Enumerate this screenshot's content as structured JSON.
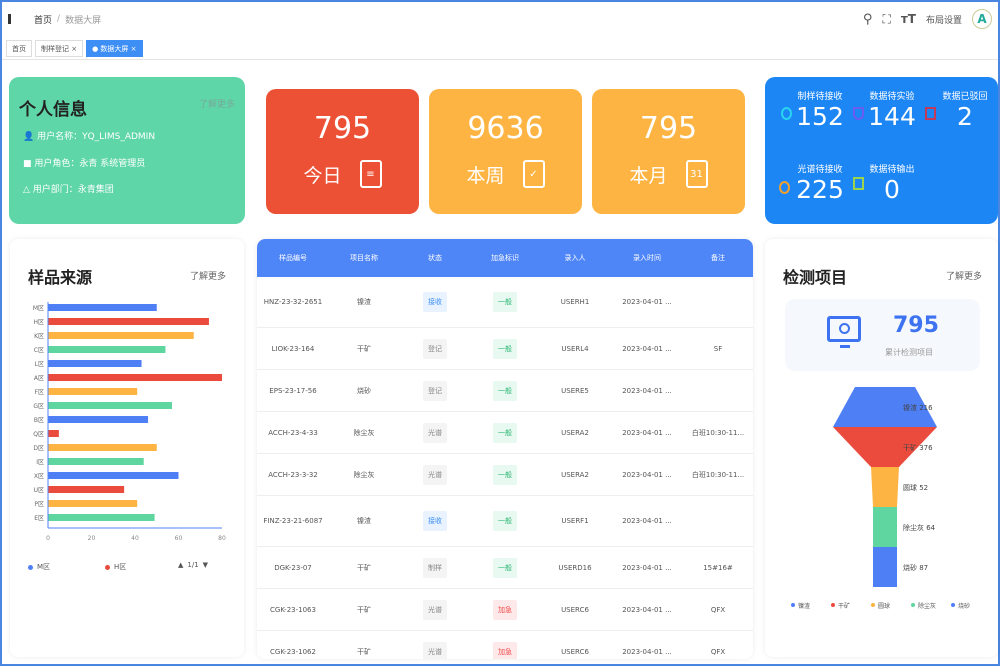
{
  "header": {
    "breadcrumb": [
      "首页",
      "/",
      "数据大屏"
    ],
    "right_text": "布局设置",
    "avatar": "A"
  },
  "tabs": [
    {
      "label": "首页"
    },
    {
      "label": "制样登记 ×"
    },
    {
      "label": "● 数据大屏 ×",
      "active": true
    }
  ],
  "profile": {
    "title": "个人信息",
    "more": "了解更多",
    "rows": [
      {
        "icon": "user-icon",
        "text": "用户名称：YQ_LIMS_ADMIN"
      },
      {
        "icon": "role-icon",
        "text": "用户角色：永青 系统管理员"
      },
      {
        "icon": "dept-icon",
        "text": "用户部门：永青集团"
      }
    ]
  },
  "stats": [
    {
      "value": "795",
      "label": "今日",
      "icon": "note-edit-icon",
      "color": "#ec5136"
    },
    {
      "value": "9636",
      "label": "本周",
      "icon": "calendar-check-icon",
      "color": "#fdb443"
    },
    {
      "value": "795",
      "label": "本月",
      "icon": "calendar-31-icon",
      "color": "#fdb443"
    }
  ],
  "pending": [
    {
      "label": "制样待接收",
      "value": "152",
      "icon": "download-icon",
      "color": "#29d3f0"
    },
    {
      "label": "数据待实验",
      "value": "144",
      "icon": "shield-icon",
      "color": "#6b5cf0"
    },
    {
      "label": "数据已驳回",
      "value": "2",
      "icon": "reject-icon",
      "color": "#c23a5a"
    },
    {
      "label": "光谱待接收",
      "value": "225",
      "icon": "timer-icon",
      "color": "#f0a030"
    },
    {
      "label": "数据待输出",
      "value": "0",
      "icon": "report-icon",
      "color": "#9bd34a"
    }
  ],
  "source": {
    "title": "样品来源",
    "more": "了解更多",
    "legend": [
      "M区",
      "H区"
    ],
    "pager": "1/1",
    "chart_data": {
      "type": "bar",
      "orientation": "horizontal",
      "categories": [
        "M区",
        "H区",
        "K区",
        "C区",
        "L区",
        "A区",
        "F区",
        "G区",
        "B区",
        "Q区",
        "D区",
        "I区",
        "X区",
        "U区",
        "P区",
        "E区"
      ],
      "values": [
        50,
        74,
        67,
        54,
        43,
        80,
        41,
        57,
        46,
        5,
        50,
        44,
        60,
        35,
        41,
        49
      ],
      "xlim": [
        0,
        80
      ],
      "xticks": [
        "0",
        "20",
        "40",
        "60",
        "80"
      ],
      "colors": [
        "#4f7ff5",
        "#ea4b3d",
        "#fdb443",
        "#5fd6a0"
      ]
    }
  },
  "table": {
    "columns": [
      "样品编号",
      "项目名称",
      "状态",
      "加急标识",
      "录入人",
      "录入时间",
      "备注"
    ],
    "rows": [
      [
        "HNZ-23-32-2651",
        "镍渣",
        "接收",
        "一般",
        "USERH1",
        "2023-04-01 ...",
        ""
      ],
      [
        "LIOK-23-164",
        "干矿",
        "登记",
        "一般",
        "USERL4",
        "2023-04-01 ...",
        "SF"
      ],
      [
        "EPS-23-17-56",
        "烧砂",
        "登记",
        "一般",
        "USERE5",
        "2023-04-01 ...",
        ""
      ],
      [
        "ACCH-23-4-33",
        "除尘灰",
        "光谱",
        "一般",
        "USERA2",
        "2023-04-01 ...",
        "白班10:30-11..."
      ],
      [
        "ACCH-23-3-32",
        "除尘灰",
        "光谱",
        "一般",
        "USERA2",
        "2023-04-01 ...",
        "白班10:30-11..."
      ],
      [
        "FINZ-23-21-6087",
        "镍渣",
        "接收",
        "一般",
        "USERF1",
        "2023-04-01 ...",
        ""
      ],
      [
        "DGK-23-07",
        "干矿",
        "制样",
        "一般",
        "USERD16",
        "2023-04-01 ...",
        "15#16#"
      ],
      [
        "CGK-23-1063",
        "干矿",
        "光谱",
        "加急",
        "USERC6",
        "2023-04-01 ...",
        "QFX"
      ],
      [
        "CGK-23-1062",
        "干矿",
        "光谱",
        "加急",
        "USERC6",
        "2023-04-01 ...",
        "QFX"
      ]
    ]
  },
  "inspection": {
    "title": "检测项目",
    "more": "了解更多",
    "total": "795",
    "total_label": "累计检测项目",
    "chart_data": {
      "type": "funnel",
      "items": [
        {
          "name": "镍渣",
          "value": 216,
          "color": "#4f7ff5"
        },
        {
          "name": "干矿",
          "value": 376,
          "color": "#ea4b3d"
        },
        {
          "name": "圆球",
          "value": 52,
          "color": "#fdb443"
        },
        {
          "name": "除尘灰",
          "value": 64,
          "color": "#5fd6a0"
        },
        {
          "name": "烧砂",
          "value": 87,
          "color": "#4f7ff5"
        }
      ]
    }
  }
}
